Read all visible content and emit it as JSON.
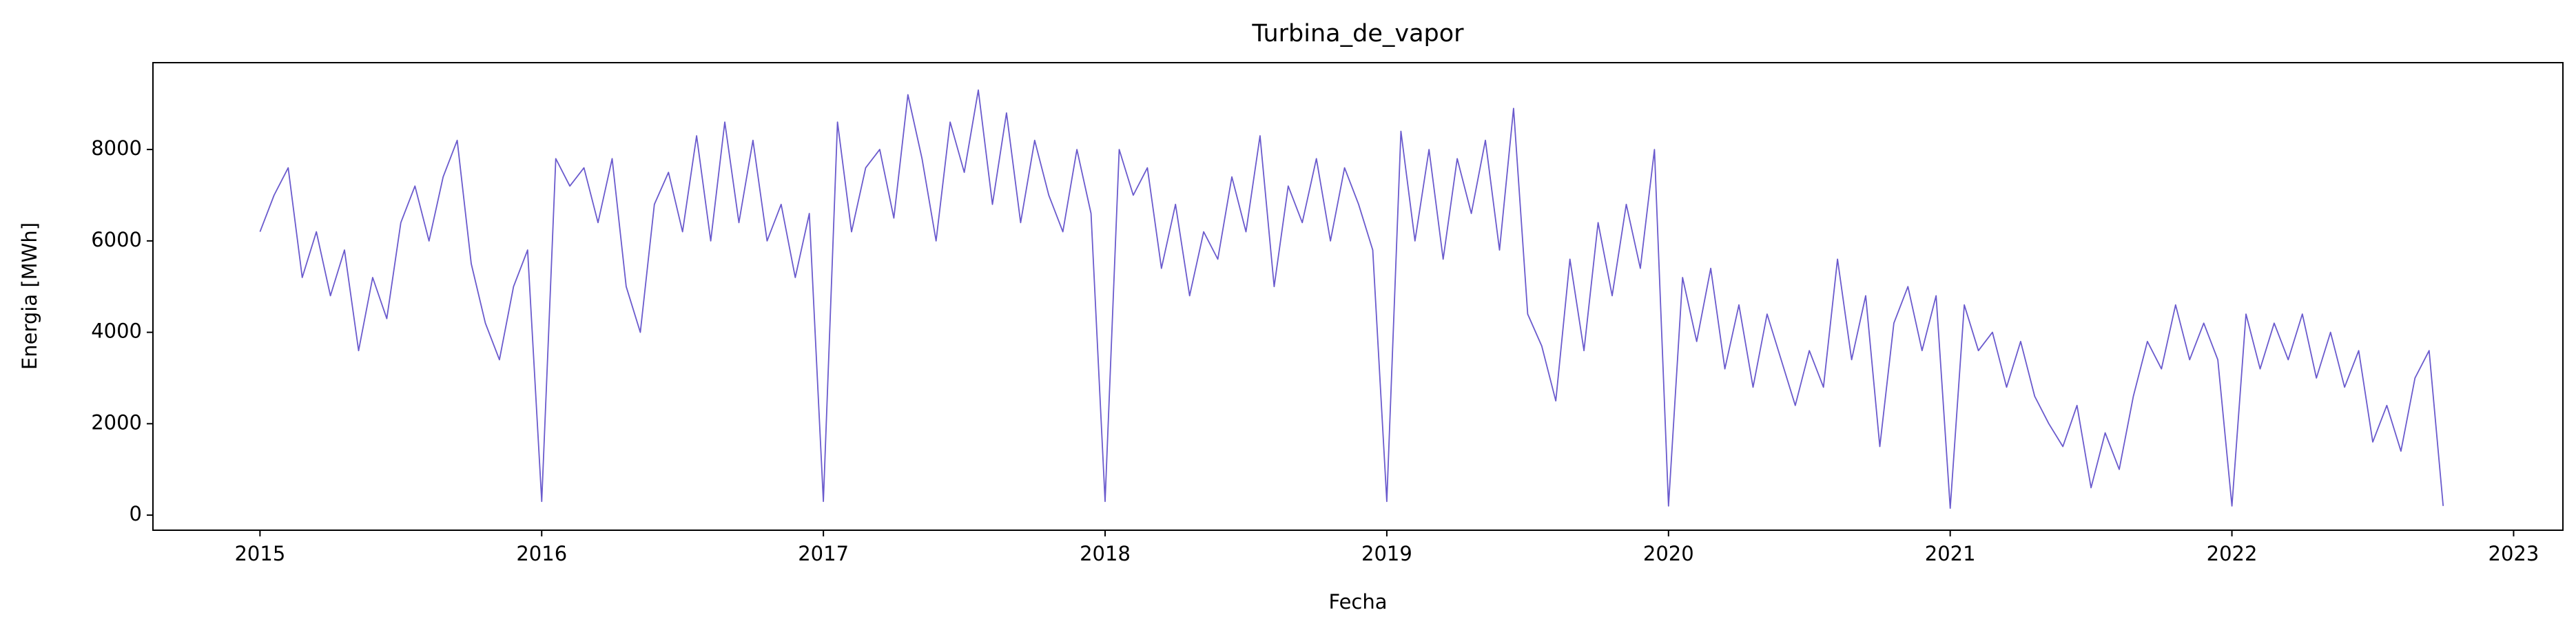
{
  "chart_data": {
    "type": "line",
    "title": "Turbina_de_vapor",
    "x_label": "Fecha",
    "y_label": "Energia [MWh]",
    "xlim": [
      2014.62,
      2023.175
    ],
    "xticks": [
      2015,
      2016,
      2017,
      2018,
      2019,
      2020,
      2021,
      2022,
      2023
    ],
    "ylim": [
      -330,
      9900
    ],
    "yticks": [
      0,
      2000,
      4000,
      6000,
      8000
    ],
    "grid": false,
    "series": [
      {
        "name": "Turbina_de_vapor",
        "color": "#6a5acd",
        "x": [
          2015.0,
          2015.05,
          2015.1,
          2015.15,
          2015.2,
          2015.25,
          2015.3,
          2015.35,
          2015.4,
          2015.45,
          2015.5,
          2015.55,
          2015.6,
          2015.65,
          2015.7,
          2015.75,
          2015.8,
          2015.85,
          2015.9,
          2015.95,
          2016.0,
          2016.05,
          2016.1,
          2016.15,
          2016.2,
          2016.25,
          2016.3,
          2016.35,
          2016.4,
          2016.45,
          2016.5,
          2016.55,
          2016.6,
          2016.65,
          2016.7,
          2016.75,
          2016.8,
          2016.85,
          2016.9,
          2016.95,
          2017.0,
          2017.05,
          2017.1,
          2017.15,
          2017.2,
          2017.25,
          2017.3,
          2017.35,
          2017.4,
          2017.45,
          2017.5,
          2017.55,
          2017.6,
          2017.65,
          2017.7,
          2017.75,
          2017.8,
          2017.85,
          2017.9,
          2017.95,
          2018.0,
          2018.05,
          2018.1,
          2018.15,
          2018.2,
          2018.25,
          2018.3,
          2018.35,
          2018.4,
          2018.45,
          2018.5,
          2018.55,
          2018.6,
          2018.65,
          2018.7,
          2018.75,
          2018.8,
          2018.85,
          2018.9,
          2018.95,
          2019.0,
          2019.05,
          2019.1,
          2019.15,
          2019.2,
          2019.25,
          2019.3,
          2019.35,
          2019.4,
          2019.45,
          2019.5,
          2019.55,
          2019.6,
          2019.65,
          2019.7,
          2019.75,
          2019.8,
          2019.85,
          2019.9,
          2019.95,
          2020.0,
          2020.05,
          2020.1,
          2020.15,
          2020.2,
          2020.25,
          2020.3,
          2020.35,
          2020.4,
          2020.45,
          2020.5,
          2020.55,
          2020.6,
          2020.65,
          2020.7,
          2020.75,
          2020.8,
          2020.85,
          2020.9,
          2020.95,
          2021.0,
          2021.05,
          2021.1,
          2021.15,
          2021.2,
          2021.25,
          2021.3,
          2021.35,
          2021.4,
          2021.45,
          2021.5,
          2021.55,
          2021.6,
          2021.65,
          2021.7,
          2021.75,
          2021.8,
          2021.85,
          2021.9,
          2021.95,
          2022.0,
          2022.05,
          2022.1,
          2022.15,
          2022.2,
          2022.25,
          2022.3,
          2022.35,
          2022.4,
          2022.45,
          2022.5,
          2022.55,
          2022.6,
          2022.65,
          2022.7,
          2022.75
        ],
        "values": [
          6200,
          7000,
          7600,
          5200,
          6200,
          4800,
          5800,
          3600,
          5200,
          4300,
          6400,
          7200,
          6000,
          7400,
          8200,
          5500,
          4200,
          3400,
          5000,
          5800,
          300,
          7800,
          7200,
          7600,
          6400,
          7800,
          5000,
          4000,
          6800,
          7500,
          6200,
          8300,
          6000,
          8600,
          6400,
          8200,
          6000,
          6800,
          5200,
          6600,
          300,
          8600,
          6200,
          7600,
          8000,
          6500,
          9200,
          7800,
          6000,
          8600,
          7500,
          9300,
          6800,
          8800,
          6400,
          8200,
          7000,
          6200,
          8000,
          6600,
          300,
          8000,
          7000,
          7600,
          5400,
          6800,
          4800,
          6200,
          5600,
          7400,
          6200,
          8300,
          5000,
          7200,
          6400,
          7800,
          6000,
          7600,
          6800,
          5800,
          300,
          8400,
          6000,
          8000,
          5600,
          7800,
          6600,
          8200,
          5800,
          8900,
          4400,
          3700,
          2500,
          5600,
          3600,
          6400,
          4800,
          6800,
          5400,
          8000,
          200,
          5200,
          3800,
          5400,
          3200,
          4600,
          2800,
          4400,
          3400,
          2400,
          3600,
          2800,
          5600,
          3400,
          4800,
          1500,
          4200,
          5000,
          3600,
          4800,
          150,
          4600,
          3600,
          4000,
          2800,
          3800,
          2600,
          2000,
          1500,
          2400,
          600,
          1800,
          1000,
          2600,
          3800,
          3200,
          4600,
          3400,
          4200,
          3400,
          200,
          4400,
          3200,
          4200,
          3400,
          4400,
          3000,
          4000,
          2800,
          3600,
          1600,
          2400,
          1400,
          3000,
          3600,
          200
        ]
      }
    ]
  }
}
